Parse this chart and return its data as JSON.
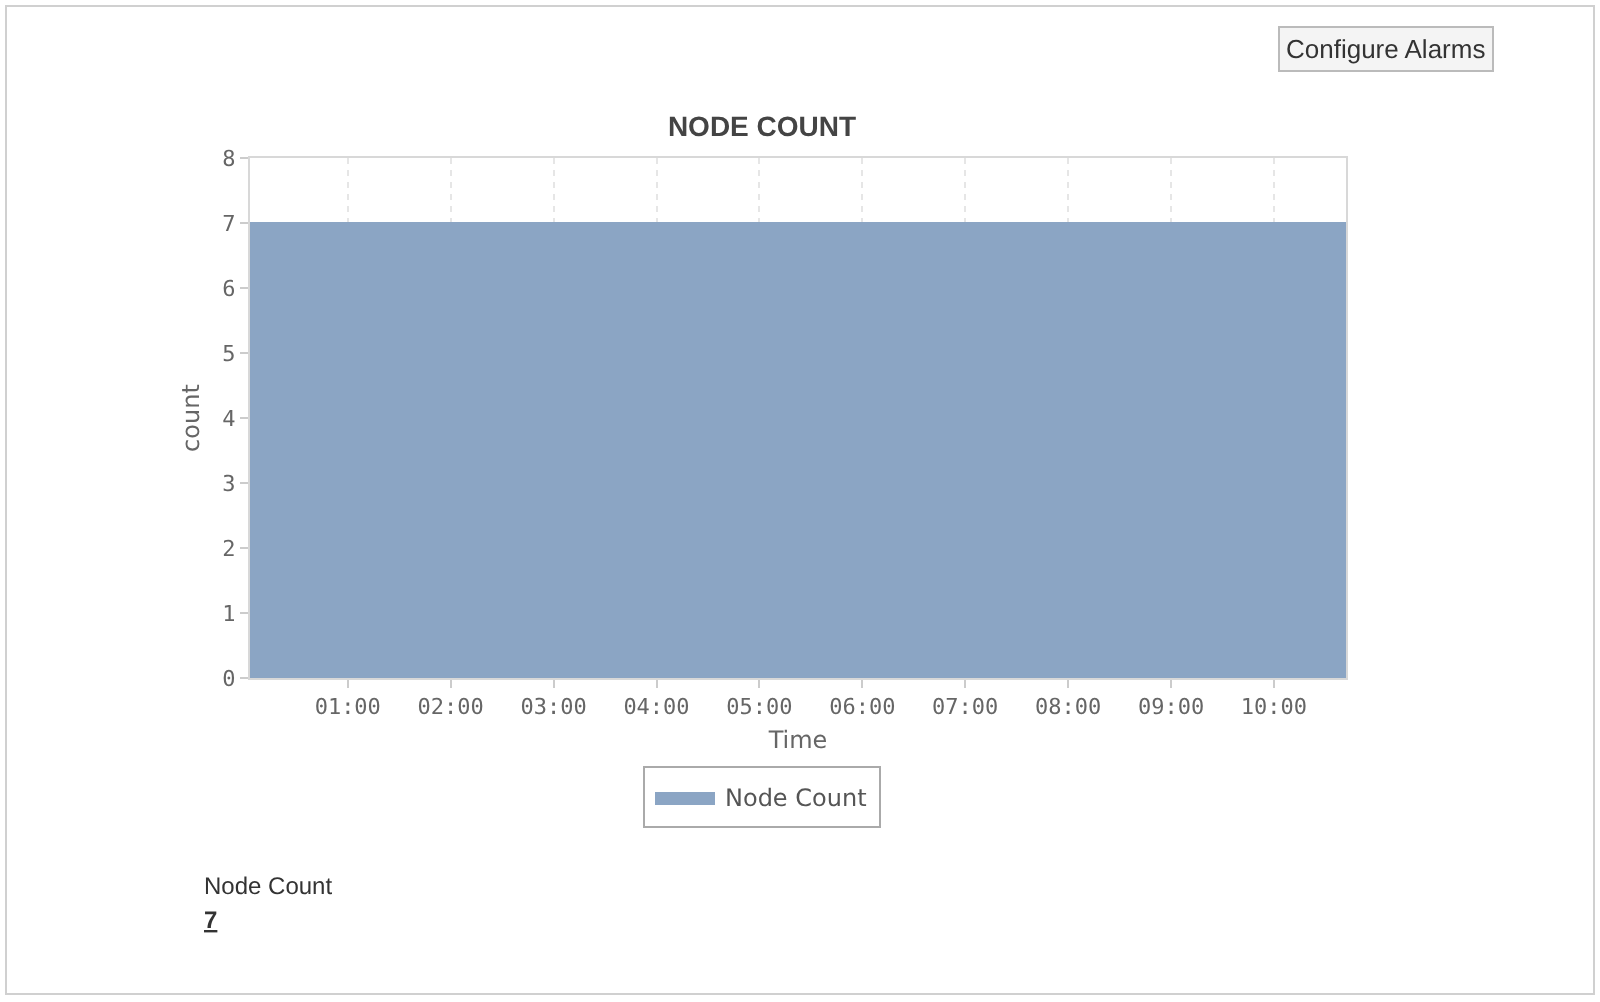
{
  "chart_data": {
    "type": "area",
    "title": "NODE COUNT",
    "xlabel": "Time",
    "ylabel": "count",
    "x": [
      0.05,
      10.7
    ],
    "series": [
      {
        "name": "Node Count",
        "color": "#8ba5c4",
        "values": [
          7,
          7
        ]
      }
    ],
    "xlim": [
      0.05,
      10.7
    ],
    "xticks": [
      {
        "value": 1,
        "label": "01:00"
      },
      {
        "value": 2,
        "label": "02:00"
      },
      {
        "value": 3,
        "label": "03:00"
      },
      {
        "value": 4,
        "label": "04:00"
      },
      {
        "value": 5,
        "label": "05:00"
      },
      {
        "value": 6,
        "label": "06:00"
      },
      {
        "value": 7,
        "label": "07:00"
      },
      {
        "value": 8,
        "label": "08:00"
      },
      {
        "value": 9,
        "label": "09:00"
      },
      {
        "value": 10,
        "label": "10:00"
      }
    ],
    "ylim": [
      0,
      8
    ],
    "yticks": [
      0,
      1,
      2,
      3,
      4,
      5,
      6,
      7,
      8
    ],
    "grid": true,
    "legend": "bottom",
    "annotations": [
      "Configure Alarms",
      "Node Count",
      "7"
    ]
  }
}
